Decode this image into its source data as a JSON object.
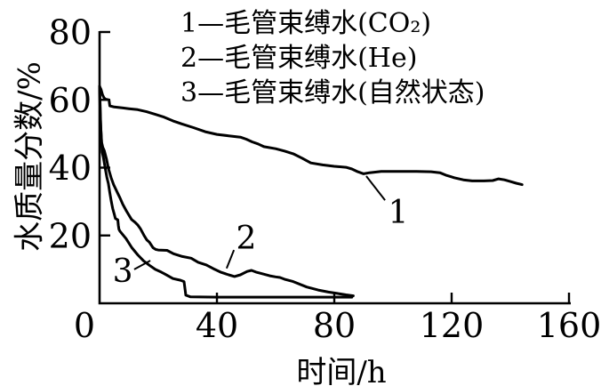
{
  "figure": {
    "background": "#ffffff",
    "ink": "#000000"
  },
  "chart_data": {
    "type": "line",
    "title": "",
    "xlabel": "时间/h",
    "ylabel": "水质量分数/%",
    "xlim": [
      0,
      160
    ],
    "ylim": [
      0,
      80
    ],
    "x_ticks": [
      0,
      40,
      80,
      120,
      160
    ],
    "y_ticks": [
      20,
      40,
      60,
      80
    ],
    "grid": false,
    "legend_position": "top-inside",
    "legend": [
      "1—毛管束缚水(CO₂)",
      "2—毛管束缚水(He)",
      "3—毛管束缚水(自然状态)"
    ],
    "series": [
      {
        "id": "1",
        "name": "毛管束缚水(CO₂)",
        "points": [
          [
            0,
            64
          ],
          [
            0.5,
            63
          ],
          [
            1,
            61.5
          ],
          [
            1.5,
            60.6
          ],
          [
            2,
            60.2
          ],
          [
            3.2,
            60
          ],
          [
            3.5,
            58.2
          ],
          [
            5,
            57.9
          ],
          [
            8,
            57.6
          ],
          [
            10,
            57.4
          ],
          [
            13,
            57.1
          ],
          [
            16,
            56.5
          ],
          [
            19,
            55.7
          ],
          [
            22,
            54.9
          ],
          [
            25,
            53.8
          ],
          [
            28,
            52.9
          ],
          [
            32,
            51.8
          ],
          [
            36,
            50.6
          ],
          [
            40,
            49.8
          ],
          [
            44,
            49.4
          ],
          [
            48,
            49
          ],
          [
            50,
            48.4
          ],
          [
            52,
            47.6
          ],
          [
            54,
            47
          ],
          [
            56,
            46.2
          ],
          [
            60,
            45.6
          ],
          [
            63,
            44.9
          ],
          [
            66,
            44.1
          ],
          [
            69,
            42.8
          ],
          [
            72,
            41.4
          ],
          [
            76,
            40.8
          ],
          [
            80,
            40.4
          ],
          [
            84,
            40.1
          ],
          [
            86,
            39.6
          ],
          [
            88,
            38.8
          ],
          [
            90,
            38.2
          ],
          [
            92,
            38.5
          ],
          [
            96,
            38.9
          ],
          [
            102,
            38.9
          ],
          [
            108,
            38.9
          ],
          [
            113,
            38.8
          ],
          [
            116,
            38.5
          ],
          [
            118,
            37.8
          ],
          [
            121,
            37
          ],
          [
            124,
            36.4
          ],
          [
            127,
            36.1
          ],
          [
            131,
            36.1
          ],
          [
            134,
            36.2
          ],
          [
            136,
            36.7
          ],
          [
            138,
            36.4
          ],
          [
            140,
            35.9
          ],
          [
            142,
            35.4
          ],
          [
            144,
            35
          ]
        ]
      },
      {
        "id": "2",
        "name": "毛管束缚水(He)",
        "points": [
          [
            0,
            64
          ],
          [
            0.2,
            58
          ],
          [
            0.4,
            52
          ],
          [
            0.7,
            47.5
          ],
          [
            1.1,
            46
          ],
          [
            1.6,
            45
          ],
          [
            2.4,
            42.4
          ],
          [
            3,
            39.8
          ],
          [
            3.9,
            37.1
          ],
          [
            4.8,
            35
          ],
          [
            6.1,
            32.6
          ],
          [
            7,
            31
          ],
          [
            7.9,
            29.2
          ],
          [
            9.1,
            27.3
          ],
          [
            10,
            26
          ],
          [
            10.9,
            24.7
          ],
          [
            12.1,
            23.9
          ],
          [
            13,
            23.1
          ],
          [
            13.9,
            22
          ],
          [
            15.2,
            19.9
          ],
          [
            16.1,
            18.7
          ],
          [
            17,
            18
          ],
          [
            18.2,
            16.4
          ],
          [
            19.1,
            15.9
          ],
          [
            20,
            15.7
          ],
          [
            23,
            15.6
          ],
          [
            25.2,
            14.6
          ],
          [
            28.2,
            13.8
          ],
          [
            31.2,
            13.3
          ],
          [
            33.6,
            12.1
          ],
          [
            36.4,
            11.3
          ],
          [
            38.8,
            10.2
          ],
          [
            41.2,
            9.2
          ],
          [
            44,
            8.4
          ],
          [
            46,
            7.9
          ],
          [
            48,
            8.4
          ],
          [
            50.3,
            9.4
          ],
          [
            51.8,
            9.7
          ],
          [
            53.3,
            9.2
          ],
          [
            55.5,
            8.7
          ],
          [
            58,
            8.1
          ],
          [
            60,
            7.8
          ],
          [
            61.5,
            7.6
          ],
          [
            63,
            7.1
          ],
          [
            66,
            6.4
          ],
          [
            70.6,
            4.8
          ],
          [
            74.5,
            3.9
          ],
          [
            78,
            3.3
          ],
          [
            81,
            2.9
          ],
          [
            84,
            2.5
          ],
          [
            86.5,
            2.2
          ]
        ]
      },
      {
        "id": "3",
        "name": "毛管束缚水(自然状态)",
        "points": [
          [
            0,
            64
          ],
          [
            0.2,
            56
          ],
          [
            0.5,
            50
          ],
          [
            0.7,
            47
          ],
          [
            0.9,
            44.5
          ],
          [
            1.3,
            43
          ],
          [
            1.7,
            41
          ],
          [
            2.1,
            39
          ],
          [
            2.5,
            37
          ],
          [
            3,
            35.3
          ],
          [
            3.5,
            32.6
          ],
          [
            4,
            30
          ],
          [
            4.5,
            27.9
          ],
          [
            5,
            26.3
          ],
          [
            5.4,
            25
          ],
          [
            6.2,
            24.6
          ],
          [
            6.4,
            23
          ],
          [
            6.6,
            21.8
          ],
          [
            7,
            21.2
          ],
          [
            9,
            19.1
          ],
          [
            11,
            16.4
          ],
          [
            13,
            14.3
          ],
          [
            15,
            12.5
          ],
          [
            17,
            11.2
          ],
          [
            19,
            10
          ],
          [
            21,
            9.2
          ],
          [
            22.1,
            8.7
          ],
          [
            25,
            7.3
          ],
          [
            27.6,
            6.8
          ],
          [
            28.8,
            6.4
          ],
          [
            29.4,
            2.4
          ],
          [
            31,
            1.9
          ],
          [
            40,
            1.8
          ],
          [
            50,
            1.8
          ],
          [
            60,
            1.8
          ],
          [
            70,
            1.8
          ],
          [
            80,
            1.8
          ],
          [
            86,
            1.8
          ]
        ]
      }
    ],
    "annotations": [
      {
        "text": "1",
        "x": 101.8,
        "y": 27.0,
        "leader": [
          [
            90.9,
            37.5
          ],
          [
            97.3,
            30.4
          ]
        ]
      },
      {
        "text": "2",
        "x": 50.0,
        "y": 19.4,
        "leader": [
          [
            45.8,
            15.7
          ],
          [
            43.3,
            10.3
          ]
        ]
      },
      {
        "text": "3",
        "x": 7.9,
        "y": 9.7,
        "leader": [
          [
            11.8,
            10.0
          ],
          [
            17.3,
            12.6
          ]
        ]
      }
    ]
  }
}
